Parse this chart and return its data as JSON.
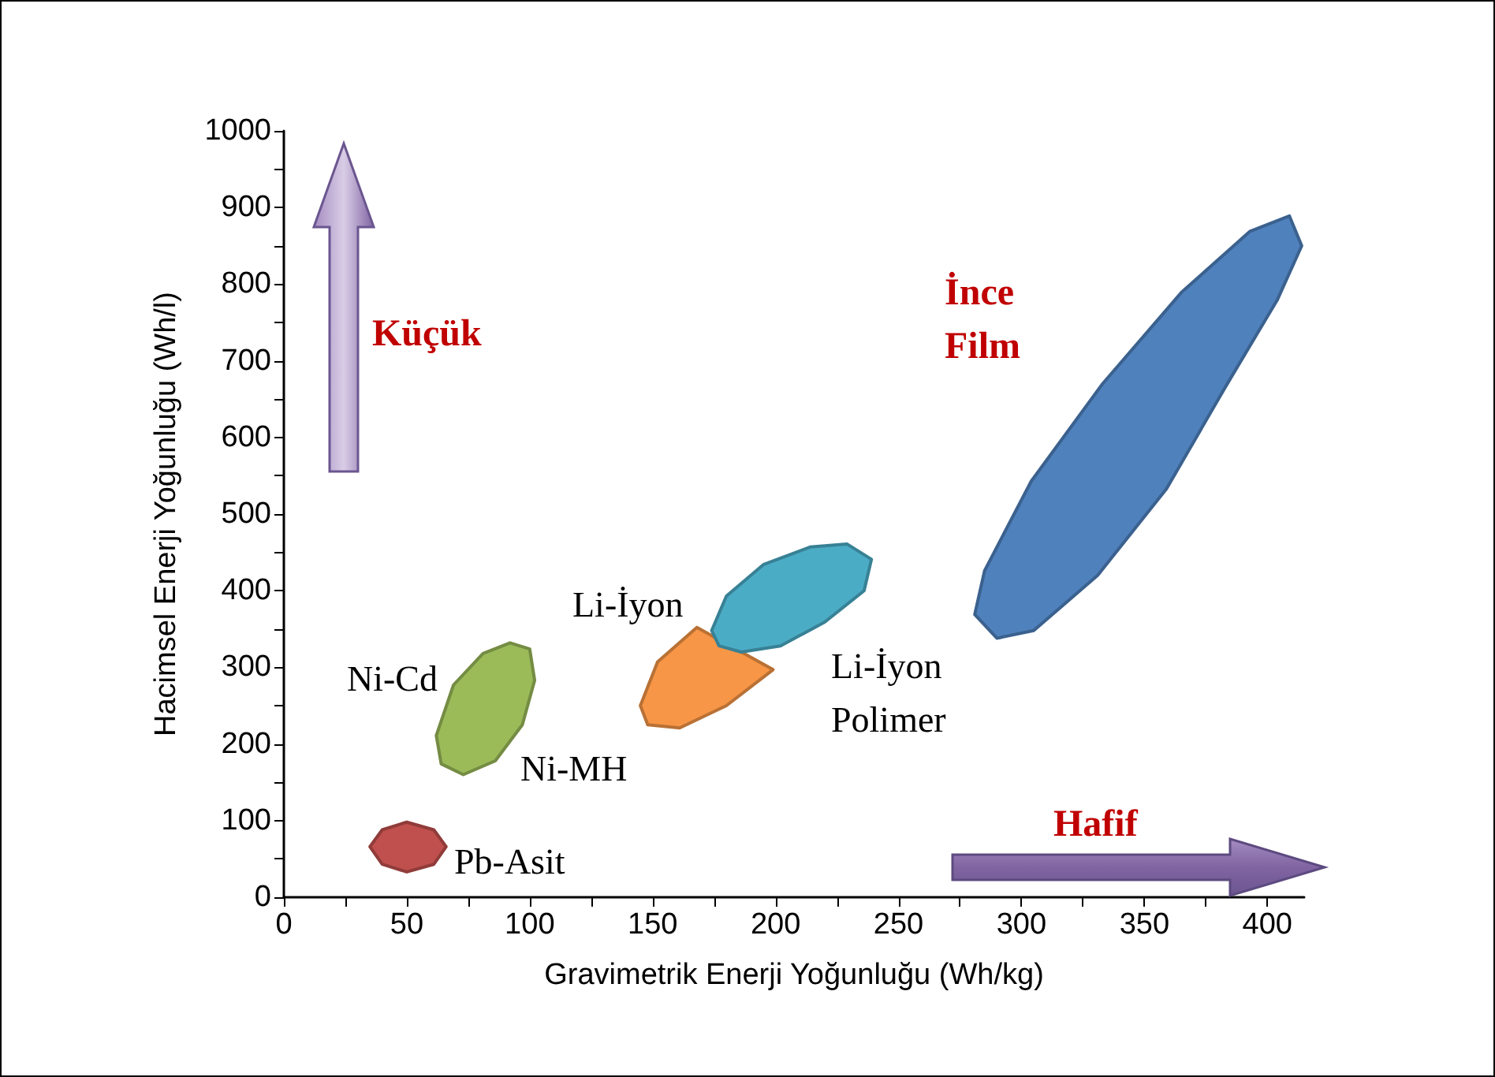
{
  "chart_data": {
    "type": "area",
    "xlabel": "Gravimetrik Enerji Yoğunluğu (Wh/kg)",
    "ylabel": "Hacimsel Enerji Yoğunluğu (Wh/l)",
    "xlim": [
      0,
      415
    ],
    "xticks": [
      0,
      {
        "value": 25,
        "label": null
      },
      50,
      {
        "value": 75,
        "label": null
      },
      100,
      {
        "value": 125,
        "label": null
      },
      150,
      {
        "value": 175,
        "label": null
      },
      200,
      {
        "value": 225,
        "label": null
      },
      250,
      {
        "value": 275,
        "label": null
      },
      300,
      {
        "value": 325,
        "label": null
      },
      350,
      {
        "value": 375,
        "label": null
      },
      400
    ],
    "ylim": [
      0,
      1000
    ],
    "yticks": [
      0,
      {
        "value": 50,
        "label": null
      },
      100,
      {
        "value": 150,
        "label": null
      },
      200,
      {
        "value": 250,
        "label": null
      },
      300,
      {
        "value": 350,
        "label": null
      },
      400,
      {
        "value": 450,
        "label": null
      },
      500,
      {
        "value": 550,
        "label": null
      },
      600,
      {
        "value": 650,
        "label": null
      },
      700,
      {
        "value": 750,
        "label": null
      },
      800,
      {
        "value": 850,
        "label": null
      },
      900,
      {
        "value": 950,
        "label": null
      },
      1000
    ],
    "grid": false,
    "series": [
      {
        "color": "#c0504d",
        "x": [
          35,
          40,
          50,
          61,
          66,
          61,
          50,
          40
        ],
        "values": [
          66,
          88,
          98,
          88,
          66,
          43,
          33,
          43
        ]
      },
      {
        "color": "#9bbb59",
        "x": [
          62,
          69,
          81,
          92,
          100,
          102,
          97,
          86,
          73,
          64
        ],
        "values": [
          211,
          277,
          318,
          332,
          324,
          283,
          225,
          178,
          160,
          174
        ]
      },
      {
        "color": "#f79646",
        "x": [
          145,
          152,
          168,
          null,
          null,
          null,
          199,
          180,
          161,
          148
        ],
        "values": [
          250,
          307,
          352,
          null,
          null,
          null,
          297,
          250,
          221,
          225
        ]
      },
      {
        "color": "#4bacc6",
        "x": [
          174,
          180,
          195,
          214,
          229,
          239,
          236,
          220,
          202,
          186,
          177
        ],
        "values": [
          348,
          393,
          434,
          457,
          461,
          441,
          400,
          359,
          328,
          320,
          328
        ]
      },
      {
        "color": "#4f81bd",
        "x": [
          281,
          285,
          304,
          333,
          365,
          393,
          409,
          414,
          404,
          383,
          359,
          331,
          305,
          290
        ],
        "values": [
          369,
          426,
          543,
          670,
          789,
          869,
          889,
          850,
          779,
          666,
          533,
          420,
          348,
          338
        ]
      }
    ],
    "annotations": [
      "Pb-Asit",
      "Ni-Cd",
      "Ni-MH",
      "Li-İyon",
      "Li-İyon\nPolimer",
      "İnce\nFilm",
      "Küçük",
      "Hafif"
    ]
  }
}
